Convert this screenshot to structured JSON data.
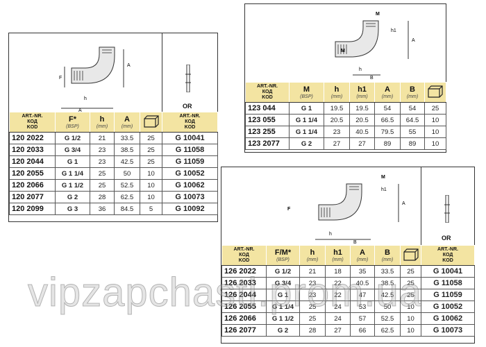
{
  "header_common": {
    "art": "ART.-NR.",
    "kod1": "КОД",
    "kod2": "KOD",
    "mm": "(mm)",
    "bsp": "(BSP)",
    "or": "OR"
  },
  "colors": {
    "header_bg": "#f3e4a2"
  },
  "icons": [
    "box-icon",
    "pipe-icon",
    "fitting-drawing"
  ],
  "table1": {
    "thread_label": "F*",
    "cols": [
      "h",
      "A"
    ],
    "rows": [
      [
        "120 2022",
        "G 1/2",
        "21",
        "33.5",
        "25",
        "G 10041"
      ],
      [
        "120 2033",
        "G 3/4",
        "23",
        "38.5",
        "25",
        "G 11058"
      ],
      [
        "120 2044",
        "G 1",
        "23",
        "42.5",
        "25",
        "G 11059"
      ],
      [
        "120 2055",
        "G 1 1/4",
        "25",
        "50",
        "10",
        "G 10052"
      ],
      [
        "120 2066",
        "G 1 1/2",
        "25",
        "52.5",
        "10",
        "G 10062"
      ],
      [
        "120 2077",
        "G 2",
        "28",
        "62.5",
        "10",
        "G 10073"
      ],
      [
        "120 2099",
        "G 3",
        "36",
        "84.5",
        "5",
        "G 10092"
      ]
    ]
  },
  "table2": {
    "thread_label": "M",
    "cols": [
      "h",
      "h1",
      "A",
      "B"
    ],
    "rows": [
      [
        "123 044",
        "G 1",
        "19.5",
        "19.5",
        "54",
        "54",
        "25"
      ],
      [
        "123 055",
        "G 1 1/4",
        "20.5",
        "20.5",
        "66.5",
        "64.5",
        "10"
      ],
      [
        "123 255",
        "G 1 1/4",
        "23",
        "40.5",
        "79.5",
        "55",
        "10"
      ],
      [
        "123 2077",
        "G 2",
        "27",
        "27",
        "89",
        "89",
        "10"
      ]
    ]
  },
  "table3": {
    "thread_label": "F/M*",
    "cols": [
      "h",
      "h1",
      "A",
      "B"
    ],
    "rows": [
      [
        "126 2022",
        "G 1/2",
        "21",
        "18",
        "35",
        "33.5",
        "25",
        "G 10041"
      ],
      [
        "126 2033",
        "G 3/4",
        "23",
        "22",
        "40.5",
        "38.5",
        "25",
        "G 11058"
      ],
      [
        "126 2044",
        "G 1",
        "23",
        "22",
        "47",
        "42.5",
        "25",
        "G 11059"
      ],
      [
        "126 2055",
        "G 1 1/4",
        "25",
        "24",
        "53",
        "50",
        "10",
        "G 10052"
      ],
      [
        "126 2066",
        "G 1 1/2",
        "25",
        "24",
        "57",
        "52.5",
        "10",
        "G 10062"
      ],
      [
        "126 2077",
        "G 2",
        "28",
        "27",
        "66",
        "62.5",
        "10",
        "G 10073"
      ]
    ]
  },
  "watermark": "vipzapchasti.prom.ua"
}
